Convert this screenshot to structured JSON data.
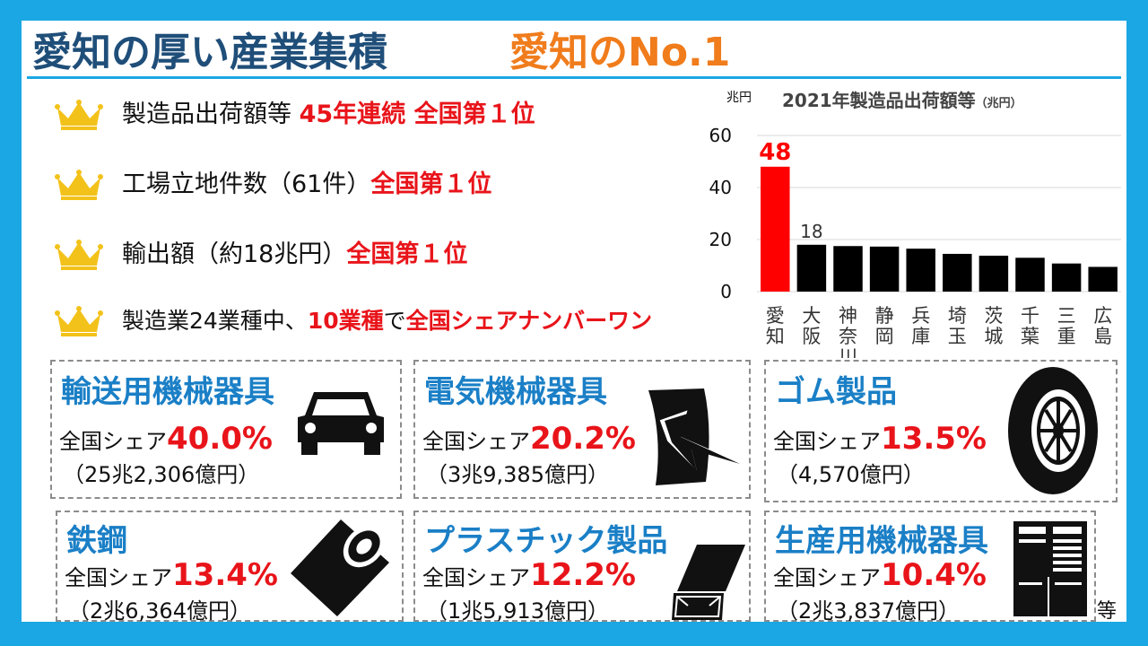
{
  "title": {
    "main": "愛知の厚い産業集積",
    "sub": "愛知のNo.1"
  },
  "rankings": [
    {
      "label": "製造品出荷額等 ",
      "highlight": "45年連続 全国第１位",
      "icon": "crown-icon"
    },
    {
      "label": "工場立地件数（61件）",
      "highlight": "全国第１位",
      "icon": "crown-icon"
    },
    {
      "label": "輸出額（約18兆円）",
      "highlight": "全国第１位",
      "icon": "crown-icon"
    },
    {
      "label": "製造業24業種中、",
      "highlight": "10業種",
      "mid": "で",
      "highlight2": "全国シェアナンバーワン",
      "icon": "crown-icon"
    }
  ],
  "colors": {
    "accent_blue": "#1aa7e4",
    "title_navy": "#1f4e79",
    "title_orange": "#f07c1c",
    "highlight_red": "#e8141a",
    "industry_blue": "#1a7fc6"
  },
  "chart_data": {
    "type": "bar",
    "title": "2021年製造品出荷額等",
    "title_unit": "（兆円）",
    "ylabel": "兆円",
    "ylim": [
      0,
      60
    ],
    "yticks": [
      0,
      20,
      40,
      60
    ],
    "grid": true,
    "categories": [
      "愛知",
      "大阪",
      "神奈川",
      "静岡",
      "兵庫",
      "埼玉",
      "茨城",
      "千葉",
      "三重",
      "広島"
    ],
    "values": [
      48,
      18,
      17.5,
      17.3,
      16.5,
      14.5,
      13.8,
      13,
      10.8,
      9.5
    ],
    "data_labels": [
      "48",
      "18",
      "",
      "",
      "",
      "",
      "",
      "",
      "",
      ""
    ],
    "bar_colors": [
      "#ff0000",
      "#000000",
      "#000000",
      "#000000",
      "#000000",
      "#000000",
      "#000000",
      "#000000",
      "#000000",
      "#000000"
    ]
  },
  "industries": [
    {
      "name": "輸送用機械器具",
      "share_prefix": "全国シェア",
      "share": "40.0%",
      "amount": "（25兆2,306億円）",
      "icon": "car-icon"
    },
    {
      "name": "電気機械器具",
      "share_prefix": "全国シェア",
      "share": "20.2%",
      "amount": "（3兆9,385億円）",
      "icon": "lightning-icon"
    },
    {
      "name": "ゴム製品",
      "share_prefix": "全国シェア",
      "share": "13.5%",
      "amount": "（4,570億円）",
      "icon": "tire-icon"
    },
    {
      "name": "鉄鋼",
      "share_prefix": "全国シェア",
      "share": "13.4%",
      "amount": "（2兆6,364億円）",
      "icon": "steel-coil-icon"
    },
    {
      "name": "プラスチック製品",
      "share_prefix": "全国シェア",
      "share": "12.2%",
      "amount": "（1兆5,913億円）",
      "icon": "plastic-box-icon"
    },
    {
      "name": "生産用機械器具",
      "share_prefix": "全国シェア",
      "share": "10.4%",
      "amount": "（2兆3,837億円）",
      "icon": "machine-icon"
    }
  ],
  "footnote": "等"
}
